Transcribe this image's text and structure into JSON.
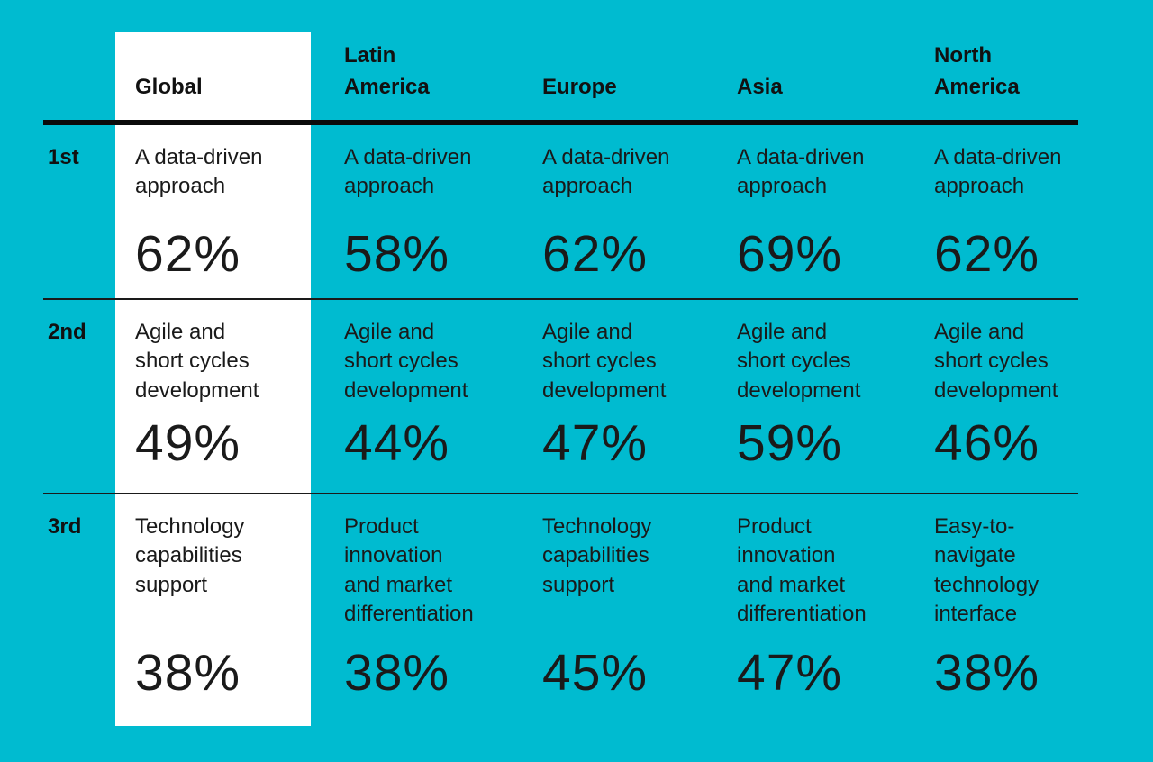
{
  "colors": {
    "background": "#00BBD0",
    "highlight_panel": "#FFFFFF",
    "text": "#1A1A1A",
    "rule": "#0B0B0B"
  },
  "table": {
    "ranks": [
      "1st",
      "2nd",
      "3rd"
    ],
    "headers": [
      "Global",
      "Latin\nAmerica",
      "Europe",
      "Asia",
      "North\nAmerica"
    ],
    "rows": [
      {
        "rank": "1st",
        "cells": [
          {
            "label": "A data-driven\napproach",
            "pct": "62%"
          },
          {
            "label": "A data-driven\napproach",
            "pct": "58%"
          },
          {
            "label": "A data-driven\napproach",
            "pct": "62%"
          },
          {
            "label": "A data-driven\napproach",
            "pct": "69%"
          },
          {
            "label": "A data-driven\napproach",
            "pct": "62%"
          }
        ]
      },
      {
        "rank": "2nd",
        "cells": [
          {
            "label": "Agile and\nshort cycles\ndevelopment",
            "pct": "49%"
          },
          {
            "label": "Agile and\nshort cycles\ndevelopment",
            "pct": "44%"
          },
          {
            "label": "Agile and\nshort cycles\ndevelopment",
            "pct": "47%"
          },
          {
            "label": "Agile and\nshort cycles\ndevelopment",
            "pct": "59%"
          },
          {
            "label": "Agile and\nshort cycles\ndevelopment",
            "pct": "46%"
          }
        ]
      },
      {
        "rank": "3rd",
        "cells": [
          {
            "label": "Technology\ncapabilities\nsupport",
            "pct": "38%"
          },
          {
            "label": "Product\ninnovation\nand market\ndifferentiation",
            "pct": "38%"
          },
          {
            "label": "Technology\ncapabilities\nsupport",
            "pct": "45%"
          },
          {
            "label": "Product\ninnovation\nand market\ndifferentiation",
            "pct": "47%"
          },
          {
            "label": "Easy-to-\nnavigate\ntechnology\ninterface",
            "pct": "38%"
          }
        ]
      }
    ]
  },
  "chart_data": {
    "type": "table",
    "title": "",
    "columns": [
      "Global",
      "Latin America",
      "Europe",
      "Asia",
      "North America"
    ],
    "row_ranks": [
      "1st",
      "2nd",
      "3rd"
    ],
    "cells": [
      [
        {
          "column": "Global",
          "label": "A data-driven approach",
          "value_pct": 62
        },
        {
          "column": "Latin America",
          "label": "A data-driven approach",
          "value_pct": 58
        },
        {
          "column": "Europe",
          "label": "A data-driven approach",
          "value_pct": 62
        },
        {
          "column": "Asia",
          "label": "A data-driven approach",
          "value_pct": 69
        },
        {
          "column": "North America",
          "label": "A data-driven approach",
          "value_pct": 62
        }
      ],
      [
        {
          "column": "Global",
          "label": "Agile and short cycles development",
          "value_pct": 49
        },
        {
          "column": "Latin America",
          "label": "Agile and short cycles development",
          "value_pct": 44
        },
        {
          "column": "Europe",
          "label": "Agile and short cycles development",
          "value_pct": 47
        },
        {
          "column": "Asia",
          "label": "Agile and short cycles development",
          "value_pct": 59
        },
        {
          "column": "North America",
          "label": "Agile and short cycles development",
          "value_pct": 46
        }
      ],
      [
        {
          "column": "Global",
          "label": "Technology capabilities support",
          "value_pct": 38
        },
        {
          "column": "Latin America",
          "label": "Product innovation and market differentiation",
          "value_pct": 38
        },
        {
          "column": "Europe",
          "label": "Technology capabilities support",
          "value_pct": 45
        },
        {
          "column": "Asia",
          "label": "Product innovation and market differentiation",
          "value_pct": 47
        },
        {
          "column": "North America",
          "label": "Easy-to-navigate technology interface",
          "value_pct": 38
        }
      ]
    ],
    "layout": {
      "highlighted_column": "Global",
      "grid": "off",
      "legend": "none"
    }
  }
}
